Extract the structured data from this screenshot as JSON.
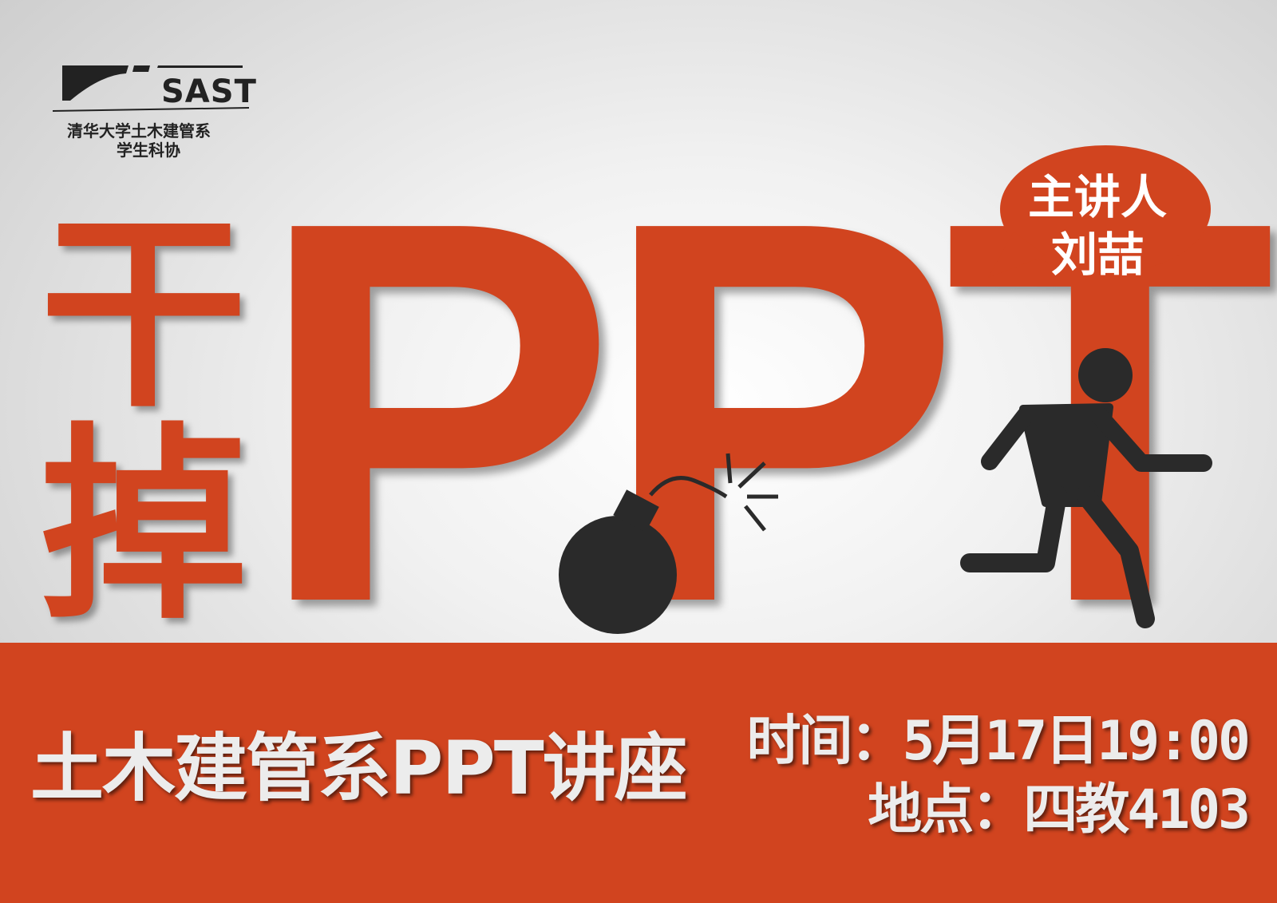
{
  "logo": {
    "acronym": "SAST",
    "line1": "清华大学土木建管系",
    "line2": "学生科协"
  },
  "headline": {
    "char1": "干",
    "char2": "掉",
    "ppt": "PPT"
  },
  "speaker": {
    "label": "主讲人",
    "name": "刘喆"
  },
  "event": {
    "title": "土木建管系PPT讲座",
    "time": "时间：5月17日19:00",
    "place": "地点：四教4103"
  },
  "colors": {
    "accent": "#d1441f",
    "dark": "#2a2a2a",
    "light_text": "#ececec"
  },
  "icons": [
    "bomb-icon",
    "running-man-icon",
    "speech-bubble-icon"
  ]
}
